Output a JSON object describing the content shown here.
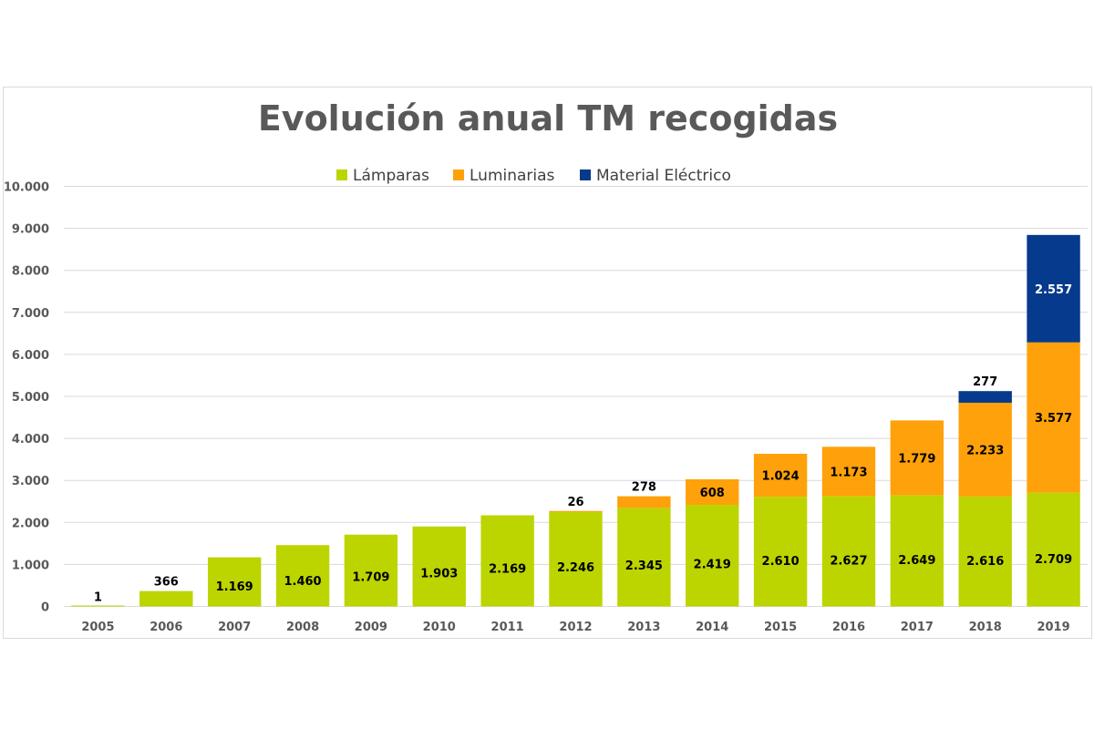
{
  "chart_data": {
    "type": "bar",
    "stacked": true,
    "title": "Evolución anual TM recogidas",
    "xlabel": "",
    "ylabel": "",
    "ylim": [
      0,
      10000
    ],
    "yticks": [
      0,
      1000,
      2000,
      3000,
      4000,
      5000,
      6000,
      7000,
      8000,
      9000,
      10000
    ],
    "ytick_labels": [
      "0",
      "1.000",
      "2.000",
      "3.000",
      "4.000",
      "5.000",
      "6.000",
      "7.000",
      "8.000",
      "9.000",
      "10.000"
    ],
    "legend_position": "top-center",
    "grid": true,
    "categories": [
      "2005",
      "2006",
      "2007",
      "2008",
      "2009",
      "2010",
      "2011",
      "2012",
      "2013",
      "2014",
      "2015",
      "2016",
      "2017",
      "2018",
      "2019"
    ],
    "series": [
      {
        "name": "Lámparas",
        "color": "#bcd500",
        "values": [
          1,
          366,
          1169,
          1460,
          1709,
          1903,
          2169,
          2246,
          2345,
          2419,
          2610,
          2627,
          2649,
          2616,
          2709
        ],
        "labels": [
          "1",
          "366",
          "1.169",
          "1.460",
          "1.709",
          "1.903",
          "2.169",
          "2.246",
          "2.345",
          "2.419",
          "2.610",
          "2.627",
          "2.649",
          "2.616",
          "2.709"
        ]
      },
      {
        "name": "Luminarias",
        "color": "#ffa10a",
        "values": [
          null,
          null,
          null,
          null,
          null,
          null,
          null,
          26,
          278,
          608,
          1024,
          1173,
          1779,
          2233,
          3577
        ],
        "labels": [
          "",
          "",
          "",
          "",
          "",
          "",
          "",
          "26",
          "278",
          "608",
          "1.024",
          "1.173",
          "1.779",
          "2.233",
          "3.577"
        ]
      },
      {
        "name": "Material Eléctrico",
        "color": "#063a8c",
        "values": [
          null,
          null,
          null,
          null,
          null,
          null,
          null,
          null,
          null,
          null,
          null,
          null,
          null,
          277,
          2557
        ],
        "labels": [
          "",
          "",
          "",
          "",
          "",
          "",
          "",
          "",
          "",
          "",
          "",
          "",
          "",
          "277",
          "2.557"
        ]
      }
    ]
  }
}
